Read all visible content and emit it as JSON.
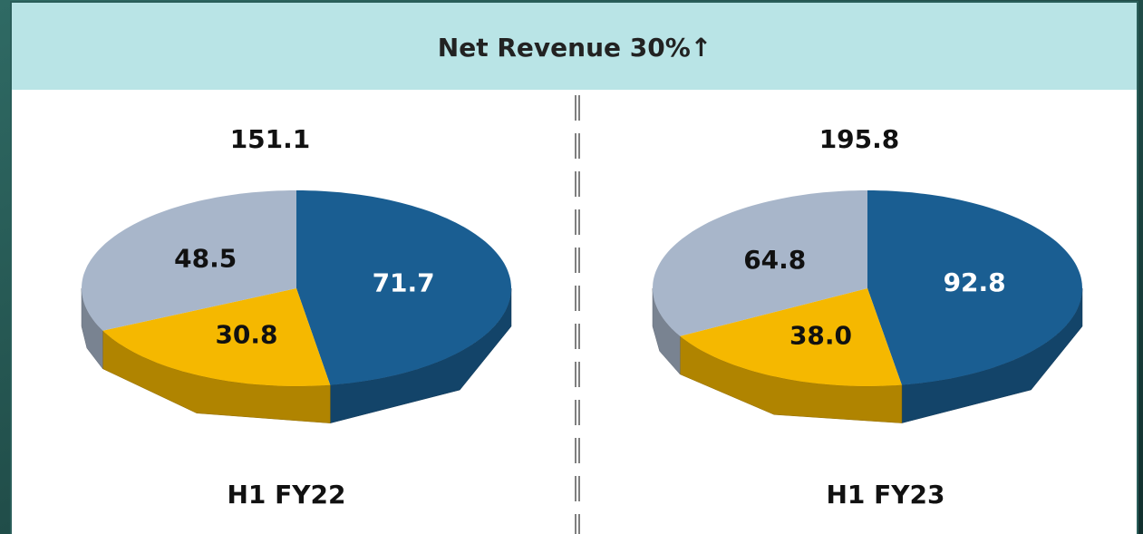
{
  "header": {
    "title": "Net Revenue  30%↑"
  },
  "chart_data": [
    {
      "type": "pie",
      "total": 151.1,
      "label": "H1 FY22",
      "values": [
        71.7,
        30.8,
        48.5
      ],
      "value_labels": [
        "71.7",
        "30.8",
        "48.5"
      ],
      "colors": [
        "#1a5e92",
        "#f5b800",
        "#a8b6ca"
      ]
    },
    {
      "type": "pie",
      "total": 195.8,
      "label": "H1 FY23",
      "values": [
        92.8,
        38.0,
        64.8
      ],
      "value_labels": [
        "92.8",
        "38.0",
        "64.8"
      ],
      "colors": [
        "#1a5e92",
        "#f5b800",
        "#a8b6ca"
      ]
    }
  ]
}
